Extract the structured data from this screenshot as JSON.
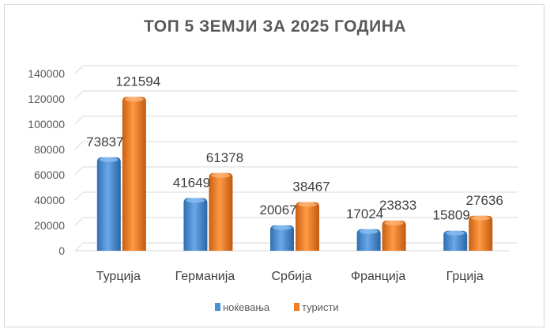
{
  "chart_data": {
    "type": "bar",
    "title": "ТОП 5 ЗЕМЈИ ЗА 2025 ГОДИНА",
    "categories": [
      "Турција",
      "Германија",
      "Србија",
      "Франција",
      "Грција"
    ],
    "series": [
      {
        "name": "ноќевања",
        "values": [
          73837,
          41649,
          20067,
          17024,
          15809
        ],
        "color": "#4a8fd4"
      },
      {
        "name": "туристи",
        "values": [
          121594,
          61378,
          38467,
          23833,
          27636
        ],
        "color": "#f07f24"
      }
    ],
    "ylim": [
      0,
      140000
    ],
    "yticks": [
      "0",
      "20000",
      "40000",
      "60000",
      "80000",
      "100000",
      "120000",
      "140000"
    ],
    "grid": true,
    "legend": "bottom",
    "style": "3d-cylinder"
  }
}
